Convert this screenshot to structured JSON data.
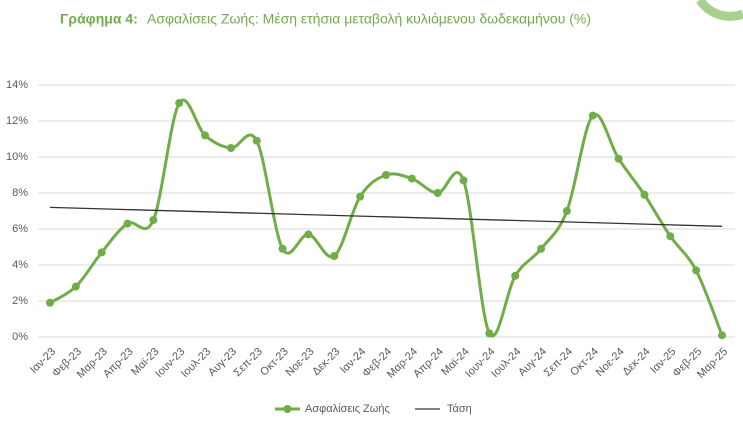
{
  "chart_data": {
    "type": "line",
    "title_prefix": "Γράφημα 4:",
    "title": "Ασφαλίσεις Ζωής: Μέση ετήσια μεταβολή κυλιόμενου δωδεκαμήνου (%)",
    "categories": [
      "Ιαν-23",
      "Φεβ-23",
      "Μαρ-23",
      "Απρ-23",
      "Μαϊ-23",
      "Ιουν-23",
      "Ιουλ-23",
      "Αυγ-23",
      "Σεπ-23",
      "Οκτ-23",
      "Νοε-23",
      "Δεκ-23",
      "Ιαν-24",
      "Φεβ-24",
      "Μαρ-24",
      "Απρ-24",
      "Μαϊ-24",
      "Ιουν-24",
      "Ιουλ-24",
      "Αυγ-24",
      "Σεπ-24",
      "Οκτ-24",
      "Νοε-24",
      "Δεκ-24",
      "Ιαν-25",
      "Φεβ-25",
      "Μαρ-25"
    ],
    "series": [
      {
        "name": "Ασφαλίσεις Ζωής",
        "color": "#70ad47",
        "values": [
          1.9,
          2.8,
          4.7,
          6.3,
          6.5,
          13.0,
          11.2,
          10.5,
          10.9,
          4.9,
          5.7,
          4.5,
          7.8,
          9.0,
          8.8,
          8.0,
          8.7,
          0.2,
          3.4,
          4.9,
          7.0,
          12.3,
          9.9,
          7.9,
          5.6,
          3.7,
          0.1
        ]
      }
    ],
    "trend": {
      "name": "Τάση",
      "color": "#333333",
      "values": [
        7.2,
        6.15
      ]
    },
    "ylim": [
      0,
      14
    ],
    "yticks": [
      {
        "value": 0,
        "label": "0%"
      },
      {
        "value": 2,
        "label": "2%"
      },
      {
        "value": 4,
        "label": "4%"
      },
      {
        "value": 6,
        "label": "6%"
      },
      {
        "value": 8,
        "label": "8%"
      },
      {
        "value": 10,
        "label": "10%"
      },
      {
        "value": 12,
        "label": "12%"
      },
      {
        "value": 14,
        "label": "14%"
      }
    ],
    "grid": true
  }
}
